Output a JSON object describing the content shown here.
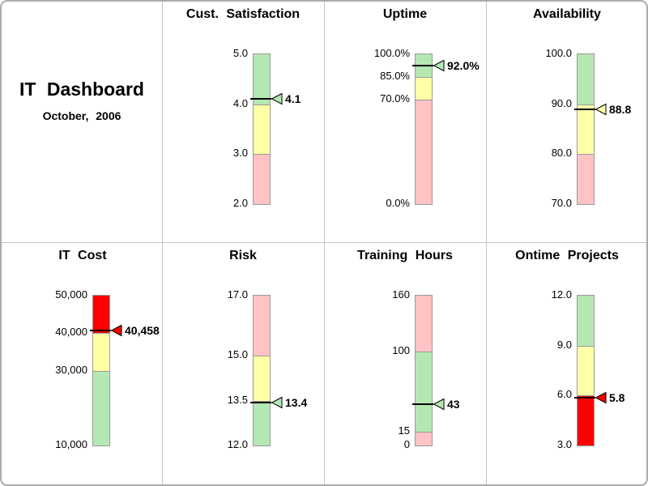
{
  "header": {
    "title": "IT Dashboard",
    "subtitle": "October, 2006"
  },
  "colors": {
    "band_green": "#b4e8b2",
    "band_yellow": "#ffffa6",
    "band_pink": "#ffc3c3",
    "band_red": "#fb0200",
    "bar_border": "#9a9a9a",
    "grid_line": "#c6c6c6",
    "frame_border": "#ababab",
    "marker_line": "#000000",
    "text": "#000000"
  },
  "chart_data": [
    {
      "type": "bar",
      "subtype": "bullet-gauge",
      "title": "Cust. Satisfaction",
      "cell": {
        "row": 0,
        "col": 1
      },
      "ylim": [
        2.0,
        5.0
      ],
      "value": 4.1,
      "value_label": "4.1",
      "marker_color": "green",
      "ticks": [
        {
          "label": "5.0",
          "value": 5.0
        },
        {
          "label": "4.0",
          "value": 4.0
        },
        {
          "label": "3.0",
          "value": 3.0
        },
        {
          "label": "2.0",
          "value": 2.0
        }
      ],
      "bands": [
        {
          "from": 4.0,
          "to": 5.0,
          "color": "green"
        },
        {
          "from": 3.0,
          "to": 4.0,
          "color": "yellow"
        },
        {
          "from": 2.0,
          "to": 3.0,
          "color": "pink"
        }
      ]
    },
    {
      "type": "bar",
      "subtype": "bullet-gauge",
      "title": "Uptime",
      "cell": {
        "row": 0,
        "col": 2
      },
      "ylim": [
        0,
        100
      ],
      "value": 92.0,
      "value_label": "92.0%",
      "marker_color": "green",
      "ticks": [
        {
          "label": "100.0%",
          "value": 100
        },
        {
          "label": "85.0%",
          "value": 85
        },
        {
          "label": "70.0%",
          "value": 70
        },
        {
          "label": "0.0%",
          "value": 0
        }
      ],
      "bands": [
        {
          "from": 85,
          "to": 100,
          "color": "green"
        },
        {
          "from": 70,
          "to": 85,
          "color": "yellow"
        },
        {
          "from": 0,
          "to": 70,
          "color": "pink"
        }
      ]
    },
    {
      "type": "bar",
      "subtype": "bullet-gauge",
      "title": "Availability",
      "cell": {
        "row": 0,
        "col": 3
      },
      "ylim": [
        70,
        100
      ],
      "value": 88.8,
      "value_label": "88.8",
      "marker_color": "yellow",
      "ticks": [
        {
          "label": "100.0",
          "value": 100
        },
        {
          "label": "90.0",
          "value": 90
        },
        {
          "label": "80.0",
          "value": 80
        },
        {
          "label": "70.0",
          "value": 70
        }
      ],
      "bands": [
        {
          "from": 90,
          "to": 100,
          "color": "green"
        },
        {
          "from": 80,
          "to": 90,
          "color": "yellow"
        },
        {
          "from": 70,
          "to": 80,
          "color": "pink"
        }
      ]
    },
    {
      "type": "bar",
      "subtype": "bullet-gauge",
      "title": "IT Cost",
      "cell": {
        "row": 1,
        "col": 0
      },
      "ylim": [
        10000,
        50000
      ],
      "value": 40458,
      "value_label": "40,458",
      "marker_color": "red",
      "ticks": [
        {
          "label": "50,000",
          "value": 50000
        },
        {
          "label": "40,000",
          "value": 40000
        },
        {
          "label": "30,000",
          "value": 30000
        },
        {
          "label": "10,000",
          "value": 10000
        }
      ],
      "bands": [
        {
          "from": 40000,
          "to": 50000,
          "color": "red"
        },
        {
          "from": 30000,
          "to": 40000,
          "color": "yellow"
        },
        {
          "from": 10000,
          "to": 30000,
          "color": "green"
        }
      ]
    },
    {
      "type": "bar",
      "subtype": "bullet-gauge",
      "title": "Risk",
      "cell": {
        "row": 1,
        "col": 1
      },
      "ylim": [
        12.0,
        17.0
      ],
      "value": 13.4,
      "value_label": "13.4",
      "marker_color": "green",
      "ticks": [
        {
          "label": "17.0",
          "value": 17.0
        },
        {
          "label": "15.0",
          "value": 15.0
        },
        {
          "label": "13.5",
          "value": 13.5
        },
        {
          "label": "12.0",
          "value": 12.0
        }
      ],
      "bands": [
        {
          "from": 15.0,
          "to": 17.0,
          "color": "pink"
        },
        {
          "from": 13.5,
          "to": 15.0,
          "color": "yellow"
        },
        {
          "from": 12.0,
          "to": 13.5,
          "color": "green"
        }
      ]
    },
    {
      "type": "bar",
      "subtype": "bullet-gauge",
      "title": "Training Hours",
      "cell": {
        "row": 1,
        "col": 2
      },
      "ylim": [
        0,
        160
      ],
      "value": 43,
      "value_label": "43",
      "marker_color": "green",
      "ticks": [
        {
          "label": "160",
          "value": 160
        },
        {
          "label": "100",
          "value": 100
        },
        {
          "label": "15",
          "value": 15
        },
        {
          "label": "0",
          "value": 0
        }
      ],
      "bands": [
        {
          "from": 100,
          "to": 160,
          "color": "pink"
        },
        {
          "from": 15,
          "to": 100,
          "color": "green"
        },
        {
          "from": 0,
          "to": 15,
          "color": "pink"
        }
      ]
    },
    {
      "type": "bar",
      "subtype": "bullet-gauge",
      "title": "Ontime Projects",
      "cell": {
        "row": 1,
        "col": 3
      },
      "ylim": [
        3.0,
        12.0
      ],
      "value": 5.8,
      "value_label": "5.8",
      "marker_color": "red",
      "ticks": [
        {
          "label": "12.0",
          "value": 12.0
        },
        {
          "label": "9.0",
          "value": 9.0
        },
        {
          "label": "6.0",
          "value": 6.0
        },
        {
          "label": "3.0",
          "value": 3.0
        }
      ],
      "bands": [
        {
          "from": 9.0,
          "to": 12.0,
          "color": "green"
        },
        {
          "from": 6.0,
          "to": 9.0,
          "color": "yellow"
        },
        {
          "from": 3.0,
          "to": 6.0,
          "color": "red"
        }
      ]
    }
  ]
}
